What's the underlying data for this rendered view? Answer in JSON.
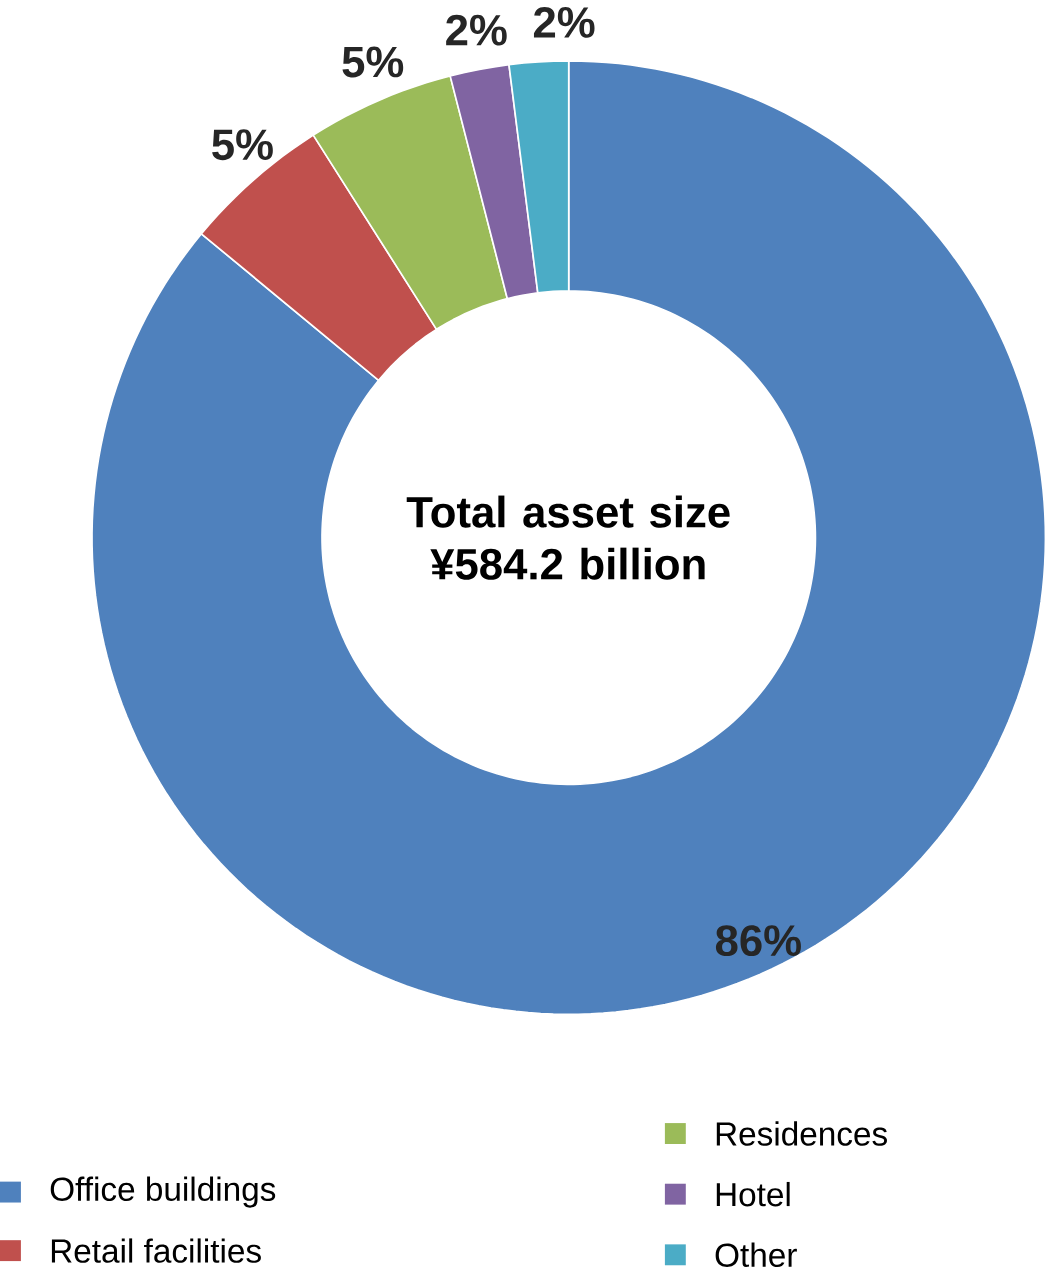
{
  "chart_data": {
    "type": "donut",
    "categories": [
      "Office buildings",
      "Retail facilities",
      "Residences",
      "Hotel",
      "Other"
    ],
    "values": [
      86,
      5,
      5,
      2,
      2
    ],
    "colors": [
      "#4f81bd",
      "#c0504d",
      "#9bbb59",
      "#8064a2",
      "#4bacc6"
    ],
    "value_labels": [
      "86%",
      "5%",
      "5%",
      "2%",
      "2%"
    ],
    "annotations": [
      "Total asset size ¥584.2 billion"
    ],
    "legend": "bottom"
  }
}
